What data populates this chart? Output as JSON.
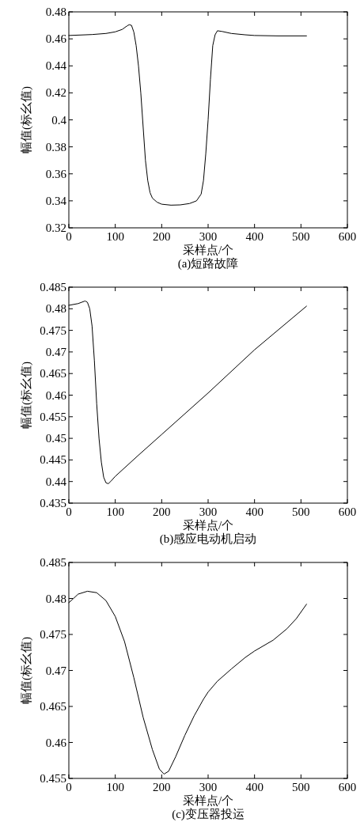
{
  "chart_data": [
    {
      "type": "line",
      "title": "(a)短路故障",
      "xlabel": "采样点/个",
      "ylabel": "幅值(标幺值)",
      "xlim": [
        0,
        600
      ],
      "ylim": [
        0.32,
        0.48
      ],
      "xticks": [
        0,
        100,
        200,
        300,
        400,
        500,
        600
      ],
      "yticks": [
        0.32,
        0.34,
        0.36,
        0.38,
        0.4,
        0.42,
        0.44,
        0.46,
        0.48
      ],
      "x": [
        0,
        50,
        80,
        100,
        115,
        125,
        130,
        135,
        140,
        145,
        150,
        155,
        160,
        165,
        170,
        175,
        180,
        190,
        200,
        220,
        240,
        260,
        275,
        285,
        290,
        295,
        300,
        305,
        310,
        315,
        320,
        330,
        350,
        380,
        400,
        450,
        512
      ],
      "series": [
        {
          "color": "#000000",
          "values": [
            0.4625,
            0.4632,
            0.464,
            0.4652,
            0.467,
            0.4695,
            0.4705,
            0.47,
            0.465,
            0.455,
            0.44,
            0.42,
            0.395,
            0.37,
            0.355,
            0.346,
            0.342,
            0.339,
            0.3375,
            0.3368,
            0.337,
            0.338,
            0.34,
            0.345,
            0.355,
            0.375,
            0.4,
            0.43,
            0.455,
            0.463,
            0.466,
            0.4655,
            0.464,
            0.463,
            0.4625,
            0.4622,
            0.4622
          ]
        }
      ]
    },
    {
      "type": "line",
      "title": "(b)感应电动机启动",
      "xlabel": "采样点/个",
      "ylabel": "幅值(标幺值)",
      "xlim": [
        0,
        600
      ],
      "ylim": [
        0.435,
        0.485
      ],
      "xticks": [
        0,
        100,
        200,
        300,
        400,
        500,
        600
      ],
      "yticks": [
        0.435,
        0.44,
        0.445,
        0.45,
        0.455,
        0.46,
        0.465,
        0.47,
        0.475,
        0.48,
        0.485
      ],
      "x": [
        0,
        20,
        35,
        40,
        45,
        50,
        55,
        60,
        65,
        70,
        75,
        80,
        85,
        90,
        100,
        150,
        200,
        300,
        400,
        512
      ],
      "series": [
        {
          "color": "#000000",
          "values": [
            0.4808,
            0.4812,
            0.4818,
            0.4815,
            0.48,
            0.476,
            0.468,
            0.458,
            0.45,
            0.4445,
            0.441,
            0.4397,
            0.4395,
            0.44,
            0.4412,
            0.4461,
            0.4509,
            0.4605,
            0.4705,
            0.4806
          ]
        }
      ]
    },
    {
      "type": "line",
      "title": "(c)变压器投运",
      "xlabel": "采样点/个",
      "ylabel": "幅值(标幺值)",
      "xlim": [
        0,
        600
      ],
      "ylim": [
        0.455,
        0.485
      ],
      "xticks": [
        0,
        100,
        200,
        300,
        400,
        500,
        600
      ],
      "yticks": [
        0.455,
        0.46,
        0.465,
        0.47,
        0.475,
        0.48,
        0.485
      ],
      "x": [
        0,
        20,
        40,
        60,
        80,
        100,
        120,
        140,
        160,
        180,
        195,
        205,
        215,
        230,
        250,
        270,
        290,
        300,
        320,
        350,
        380,
        400,
        440,
        470,
        490,
        512
      ],
      "series": [
        {
          "color": "#000000",
          "values": [
            0.4794,
            0.4806,
            0.481,
            0.4808,
            0.4797,
            0.4775,
            0.474,
            0.469,
            0.4635,
            0.459,
            0.4563,
            0.4556,
            0.456,
            0.458,
            0.461,
            0.4637,
            0.466,
            0.467,
            0.4685,
            0.4702,
            0.4718,
            0.4727,
            0.4742,
            0.4758,
            0.4772,
            0.4792
          ]
        }
      ]
    }
  ]
}
